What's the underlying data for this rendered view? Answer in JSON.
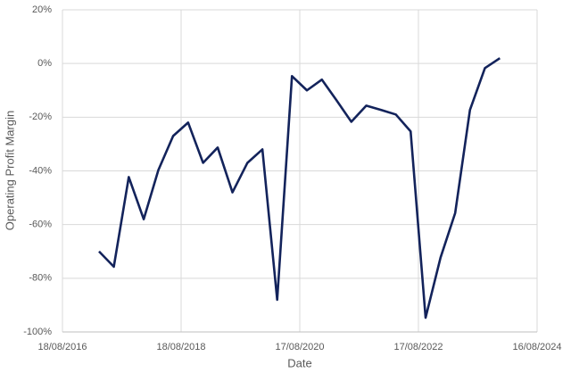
{
  "chart_data": {
    "type": "line",
    "x_label": "Date",
    "y_label": "Operating Profit Margin",
    "x": [
      "31/03/2017",
      "30/06/2017",
      "30/09/2017",
      "31/12/2017",
      "31/03/2018",
      "30/06/2018",
      "30/09/2018",
      "31/12/2018",
      "31/03/2019",
      "30/06/2019",
      "30/09/2019",
      "31/12/2019",
      "31/03/2020",
      "30/06/2020",
      "30/09/2020",
      "31/12/2020",
      "31/03/2021",
      "30/06/2021",
      "30/09/2021",
      "31/12/2021",
      "31/03/2022",
      "30/06/2022",
      "30/09/2022",
      "31/12/2022",
      "31/03/2023",
      "30/06/2023",
      "30/09/2023",
      "31/12/2023"
    ],
    "series": [
      {
        "name": "Operating Profit Margin",
        "color": "#13235b",
        "values": [
          -70,
          -75.7,
          -42.3,
          -58,
          -39.7,
          -27,
          -22,
          -37,
          -31.3,
          -48,
          -37,
          -32,
          -88,
          -4.7,
          -10,
          -6,
          -13.7,
          -21.7,
          -15.7,
          -17.3,
          -19,
          -25.3,
          -94.7,
          -72.3,
          -55.7,
          -17.3,
          -1.7,
          2
        ]
      }
    ],
    "xlim": [
      "18/08/2016",
      "16/08/2024"
    ],
    "xticks": [
      "18/08/2016",
      "18/08/2018",
      "17/08/2020",
      "17/08/2022",
      "16/08/2024"
    ],
    "ylim": [
      -100,
      20
    ],
    "yticks": [
      {
        "value": -100,
        "label": "-100%"
      },
      {
        "value": -80,
        "label": "-80%"
      },
      {
        "value": -60,
        "label": "-60%"
      },
      {
        "value": -40,
        "label": "-40%"
      },
      {
        "value": -20,
        "label": "-20%"
      },
      {
        "value": 0,
        "label": "0%"
      },
      {
        "value": 20,
        "label": "20%"
      }
    ],
    "grid": true
  }
}
